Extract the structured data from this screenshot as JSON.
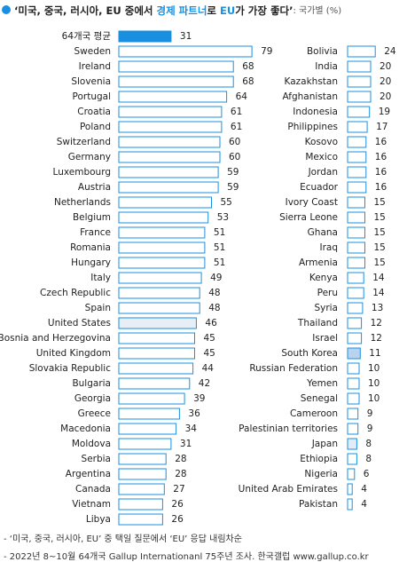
{
  "title": [
    "‘미국, 중국, 러시아, EU 중에서 ",
    "경제 파트너",
    "로 ",
    "EU",
    "가 가장 좋다’"
  ],
  "subtitle": ": 국가별 (%)",
  "chart_data": [
    {
      "type": "hbar",
      "categories": [
        "64개국 평균",
        "Sweden",
        "Ireland",
        "Slovenia",
        "Portugal",
        "Croatia",
        "Poland",
        "Switzerland",
        "Germany",
        "Luxembourg",
        "Austria",
        "Netherlands",
        "Belgium",
        "France",
        "Romania",
        "Hungary",
        "Italy",
        "Czech Republic",
        "Spain",
        "United States",
        "Bosnia and Herzegovina",
        "United Kingdom",
        "Slovakia Republic",
        "Bulgaria",
        "Georgia",
        "Greece",
        "Macedonia",
        "Moldova",
        "Serbia",
        "Argentina",
        "Canada",
        "Vietnam",
        "Libya"
      ],
      "values": [
        31,
        79,
        68,
        68,
        64,
        61,
        61,
        60,
        60,
        59,
        59,
        55,
        53,
        51,
        51,
        51,
        49,
        48,
        48,
        46,
        45,
        45,
        44,
        42,
        39,
        36,
        34,
        31,
        28,
        28,
        27,
        26,
        26
      ],
      "colors": [
        "#1a8fe0",
        "#ffffff",
        "#ffffff",
        "#ffffff",
        "#ffffff",
        "#ffffff",
        "#ffffff",
        "#ffffff",
        "#ffffff",
        "#ffffff",
        "#ffffff",
        "#ffffff",
        "#ffffff",
        "#ffffff",
        "#ffffff",
        "#ffffff",
        "#ffffff",
        "#ffffff",
        "#ffffff",
        "#e8eef5",
        "#ffffff",
        "#ffffff",
        "#ffffff",
        "#ffffff",
        "#ffffff",
        "#ffffff",
        "#ffffff",
        "#ffffff",
        "#ffffff",
        "#ffffff",
        "#ffffff",
        "#ffffff",
        "#ffffff"
      ],
      "stroke": "#1a8fe0"
    },
    {
      "type": "hbar",
      "categories": [
        "Bolivia",
        "India",
        "Kazakhstan",
        "Afghanistan",
        "Indonesia",
        "Philippines",
        "Kosovo",
        "Mexico",
        "Jordan",
        "Ecuador",
        "Ivory Coast",
        "Sierra Leone",
        "Ghana",
        "Iraq",
        "Armenia",
        "Kenya",
        "Peru",
        "Syria",
        "Thailand",
        "Israel",
        "South Korea",
        "Russian Federation",
        "Yemen",
        "Senegal",
        "Cameroon",
        "Palestinian territories",
        "Japan",
        "Ethiopia",
        "Nigeria",
        "United Arab Emirates",
        "Pakistan"
      ],
      "values": [
        24,
        20,
        20,
        20,
        19,
        17,
        16,
        16,
        16,
        16,
        15,
        15,
        15,
        15,
        15,
        14,
        14,
        13,
        12,
        12,
        11,
        10,
        10,
        10,
        9,
        9,
        8,
        8,
        6,
        4,
        4
      ],
      "colors": [
        "#ffffff",
        "#ffffff",
        "#ffffff",
        "#ffffff",
        "#ffffff",
        "#ffffff",
        "#ffffff",
        "#ffffff",
        "#ffffff",
        "#ffffff",
        "#ffffff",
        "#ffffff",
        "#ffffff",
        "#ffffff",
        "#ffffff",
        "#ffffff",
        "#ffffff",
        "#ffffff",
        "#ffffff",
        "#ffffff",
        "#b9d3ee",
        "#ffffff",
        "#ffffff",
        "#ffffff",
        "#ffffff",
        "#ffffff",
        "#e3ecf6",
        "#ffffff",
        "#ffffff",
        "#ffffff",
        "#ffffff"
      ],
      "stroke": "#1a8fe0"
    }
  ],
  "footnotes": [
    "- ‘미국, 중국, 러시아, EU’ 중 택일 질문에서 ‘EU’ 응답 내림차순",
    "- 2022년 8~10월 64개국 Gallup Internationanl 75주년 조사. 한국갤럽 www.gallup.co.kr"
  ]
}
